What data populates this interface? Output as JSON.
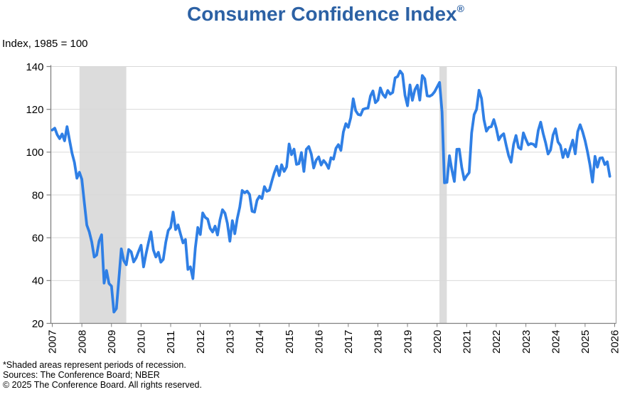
{
  "header": {
    "title": "Consumer Confidence Index",
    "registered_mark": "®"
  },
  "axis_note": "Index, 1985 = 100",
  "footnotes": [
    "*Shaded areas represent periods of recession.",
    "Sources:  The Conference Board;  NBER",
    "© 2025 The Conference Board. All rights reserved."
  ],
  "theme": {
    "title_color": "#2C61A4",
    "line_color": "#2F7FE5",
    "recession_band_color": "#DCDCDC",
    "gridline_color": "#D9D9D9",
    "axis_color": "#808080",
    "right_border_color": "#ABABAB",
    "text_color": "#000000"
  },
  "chart_data": {
    "type": "line",
    "title": "Consumer Confidence Index®",
    "ylabel": "Index, 1985 = 100",
    "frequency": "monthly",
    "start": "2007-01",
    "end": "2025-11",
    "ylim": [
      20,
      140
    ],
    "y_ticks": [
      20,
      40,
      60,
      80,
      100,
      120,
      140
    ],
    "x_tick_years": [
      2007,
      2008,
      2009,
      2010,
      2011,
      2012,
      2013,
      2014,
      2015,
      2016,
      2017,
      2018,
      2019,
      2020,
      2021,
      2022,
      2023,
      2024,
      2025,
      2026
    ],
    "grid": "horizontal",
    "legend": "none",
    "recession_bands": [
      {
        "start_year": 2007.92,
        "end_year": 2009.5
      },
      {
        "start_year": 2020.08,
        "end_year": 2020.33
      }
    ],
    "series": [
      {
        "name": "Consumer Confidence Index",
        "values": [
          110.3,
          111.2,
          108.2,
          106.3,
          108.5,
          105.3,
          111.9,
          105.6,
          99.5,
          95.2,
          87.8,
          90.6,
          87.3,
          76.4,
          65.9,
          62.8,
          58.1,
          51.0,
          51.9,
          58.5,
          61.4,
          38.8,
          44.7,
          38.6,
          37.4,
          25.3,
          26.9,
          40.8,
          54.8,
          49.3,
          47.4,
          54.5,
          53.4,
          48.7,
          50.6,
          53.6,
          56.5,
          46.4,
          52.3,
          57.7,
          62.7,
          54.3,
          51.0,
          53.2,
          48.6,
          49.9,
          57.8,
          63.4,
          64.8,
          72.0,
          63.8,
          66.0,
          61.7,
          57.6,
          59.2,
          45.2,
          46.4,
          40.9,
          55.2,
          64.8,
          61.5,
          71.6,
          69.5,
          68.7,
          64.4,
          62.7,
          65.4,
          61.3,
          68.4,
          73.1,
          71.5,
          66.7,
          58.4,
          68.0,
          61.9,
          69.0,
          74.3,
          82.1,
          81.0,
          81.8,
          80.2,
          72.4,
          72.0,
          77.5,
          79.4,
          78.3,
          83.9,
          81.7,
          82.2,
          86.4,
          90.3,
          93.4,
          89.0,
          94.1,
          91.0,
          93.1,
          103.8,
          98.8,
          101.4,
          94.3,
          94.6,
          99.8,
          91.0,
          101.3,
          102.6,
          99.1,
          92.6,
          96.3,
          97.8,
          94.0,
          96.1,
          94.7,
          92.4,
          97.4,
          96.7,
          101.8,
          103.5,
          100.8,
          109.4,
          113.3,
          111.6,
          116.1,
          124.9,
          119.4,
          117.6,
          117.3,
          120.0,
          120.4,
          120.6,
          126.2,
          128.6,
          123.1,
          124.3,
          130.0,
          127.0,
          125.6,
          128.8,
          127.1,
          127.9,
          134.7,
          135.3,
          137.9,
          136.4,
          126.6,
          121.7,
          131.4,
          124.2,
          129.2,
          131.3,
          124.3,
          135.8,
          134.2,
          126.3,
          126.1,
          126.8,
          128.2,
          130.4,
          132.6,
          118.8,
          85.7,
          85.9,
          98.3,
          91.7,
          86.3,
          101.3,
          101.4,
          92.9,
          87.1,
          88.9,
          90.4,
          109.0,
          117.5,
          120.0,
          128.9,
          125.1,
          115.2,
          109.8,
          111.6,
          111.9,
          115.2,
          111.1,
          105.7,
          107.6,
          108.6,
          103.2,
          98.4,
          95.3,
          103.6,
          107.8,
          102.2,
          101.4,
          109.0,
          106.0,
          103.4,
          104.0,
          103.7,
          102.5,
          110.1,
          114.0,
          108.7,
          104.3,
          99.1,
          101.0,
          108.0,
          110.9,
          104.8,
          103.1,
          97.5,
          101.3,
          97.8,
          101.9,
          105.6,
          99.2,
          109.6,
          112.8,
          109.5,
          105.3,
          100.1,
          93.9,
          86.0,
          98.0,
          93.0,
          97.2,
          97.4,
          94.2,
          95.5,
          88.7
        ]
      }
    ]
  }
}
